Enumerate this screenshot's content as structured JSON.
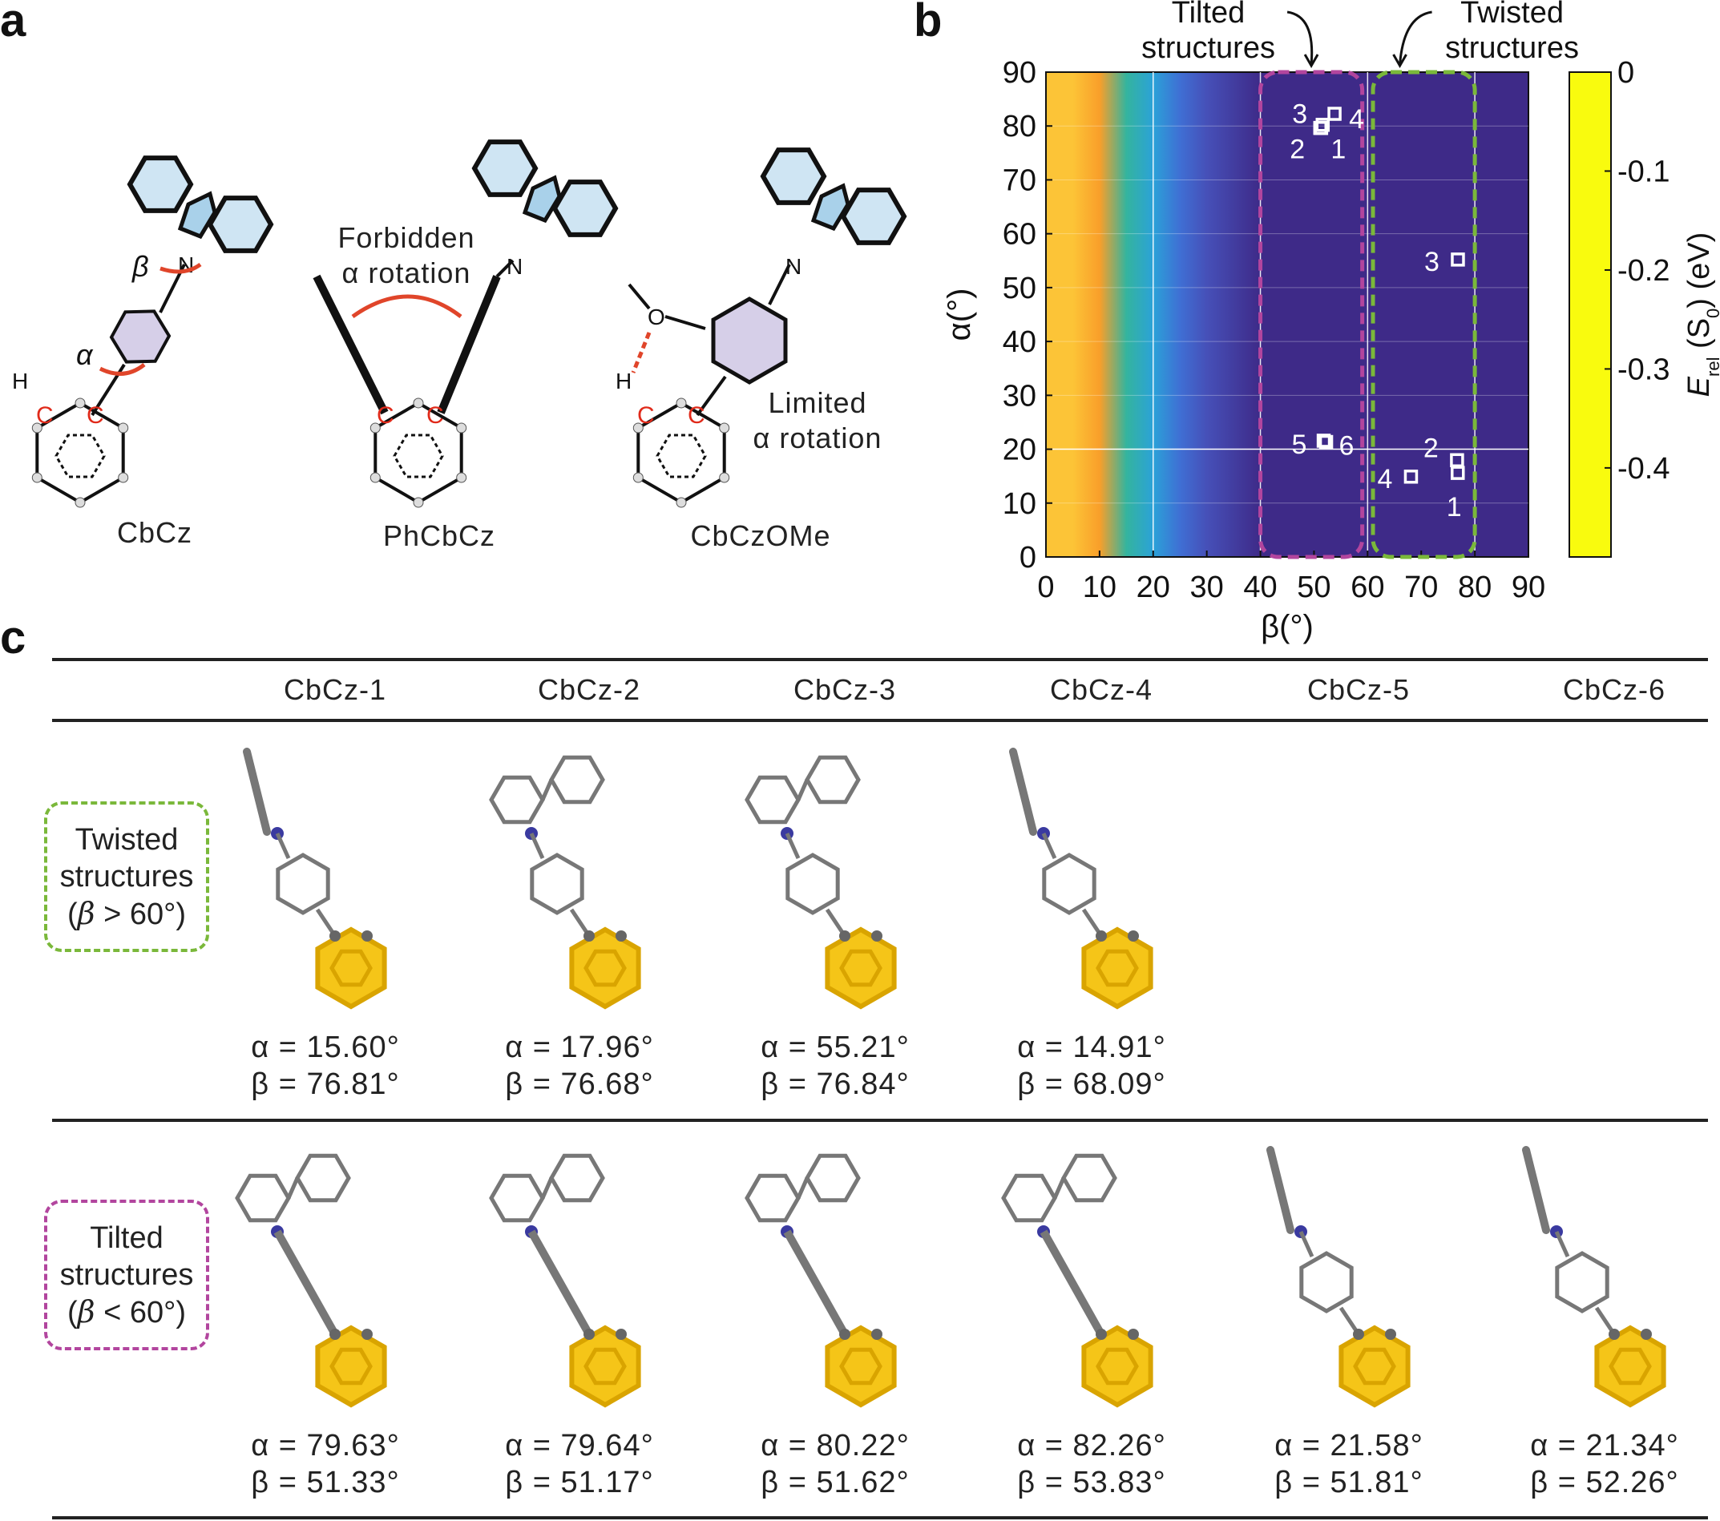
{
  "panel_labels": {
    "a": "a",
    "b": "b",
    "c": "c"
  },
  "panel_a": {
    "molecules": [
      "CbCz",
      "PhCbCz",
      "CbCzOMe"
    ],
    "forbidden_line1": "Forbidden",
    "forbidden_line2": "α rotation",
    "limited_line1": "Limited",
    "limited_line2": "α rotation",
    "angle_alpha": "α",
    "angle_beta": "β",
    "atom_N": "N",
    "atom_C": "C",
    "atom_H": "H",
    "atom_O": "O",
    "colors": {
      "carbazole": "#4a9ccc",
      "phenyl": "#a99ccc",
      "arrow": "#e0452a",
      "carbon_label": "#e02a1a"
    }
  },
  "chart_data": {
    "type": "heatmap",
    "xlabel": "β(°)",
    "ylabel": "α(°)",
    "xlim": [
      0,
      90
    ],
    "ylim": [
      0,
      90
    ],
    "xticks": [
      0,
      10,
      20,
      30,
      40,
      50,
      60,
      70,
      80,
      90
    ],
    "yticks": [
      0,
      10,
      20,
      30,
      40,
      50,
      60,
      70,
      80,
      90
    ],
    "grid": true,
    "colorbar": {
      "label": "E",
      "label_sub": "rel",
      "label_rest": " (S",
      "label_sub2": "0",
      "label_end": ") (eV)",
      "ticks": [
        "0",
        "-0.1",
        "-0.2",
        "-0.3",
        "-0.4"
      ],
      "tick_values": [
        0,
        -0.1,
        -0.2,
        -0.3,
        -0.4
      ],
      "range": [
        -0.49,
        0
      ],
      "colormap": "parula",
      "profile_beta": [
        0,
        5,
        10,
        15,
        20,
        25,
        30,
        40,
        50,
        60,
        70,
        80,
        90
      ],
      "profile_energy": [
        0,
        -0.02,
        -0.08,
        -0.18,
        -0.27,
        -0.32,
        -0.38,
        -0.44,
        -0.48,
        -0.47,
        -0.46,
        -0.45,
        -0.44
      ]
    },
    "annotations": [
      {
        "line1": "Tilted",
        "line2": "structures",
        "beta_range": [
          40,
          59
        ],
        "color": "#b2459e"
      },
      {
        "line1": "Twisted",
        "line2": "structures",
        "beta_range": [
          61,
          80
        ],
        "color": "#7ab83a"
      }
    ],
    "series": [
      {
        "group": "tilted",
        "points": [
          {
            "label": "1",
            "beta": 51.33,
            "alpha": 79.63
          },
          {
            "label": "2",
            "beta": 51.17,
            "alpha": 79.64
          },
          {
            "label": "3",
            "beta": 51.62,
            "alpha": 80.22
          },
          {
            "label": "4",
            "beta": 53.83,
            "alpha": 82.26
          },
          {
            "label": "5",
            "beta": 51.81,
            "alpha": 21.58
          },
          {
            "label": "6",
            "beta": 52.26,
            "alpha": 21.34
          }
        ]
      },
      {
        "group": "twisted",
        "points": [
          {
            "label": "1",
            "beta": 76.81,
            "alpha": 15.6
          },
          {
            "label": "2",
            "beta": 76.68,
            "alpha": 17.96
          },
          {
            "label": "3",
            "beta": 76.84,
            "alpha": 55.21
          },
          {
            "label": "4",
            "beta": 68.09,
            "alpha": 14.91
          }
        ]
      }
    ]
  },
  "panel_c": {
    "columns": [
      "CbCz-1",
      "CbCz-2",
      "CbCz-3",
      "CbCz-4",
      "CbCz-5",
      "CbCz-6"
    ],
    "rows": [
      {
        "label1": "Twisted",
        "label2": "structures",
        "label3_pre": "(",
        "label3_sym": "β",
        "label3_post": " > 60°)",
        "color": "#7ab83a",
        "entries": [
          {
            "alpha": "α = 15.60°",
            "beta": "β = 76.81°"
          },
          {
            "alpha": "α = 17.96°",
            "beta": "β = 76.68°"
          },
          {
            "alpha": "α = 55.21°",
            "beta": "β = 76.84°"
          },
          {
            "alpha": "α = 14.91°",
            "beta": "β = 68.09°"
          }
        ]
      },
      {
        "label1": "Tilted",
        "label2": "structures",
        "label3_pre": "(",
        "label3_sym": "β",
        "label3_post": " < 60°)",
        "color": "#b2459e",
        "entries": [
          {
            "alpha": "α = 79.63°",
            "beta": "β = 51.33°"
          },
          {
            "alpha": "α = 79.64°",
            "beta": "β = 51.17°"
          },
          {
            "alpha": "α = 80.22°",
            "beta": "β = 51.62°"
          },
          {
            "alpha": "α = 82.26°",
            "beta": "β = 53.83°"
          },
          {
            "alpha": "α = 21.58°",
            "beta": "β = 51.81°"
          },
          {
            "alpha": "α = 21.34°",
            "beta": "β = 52.26°"
          }
        ]
      }
    ]
  }
}
